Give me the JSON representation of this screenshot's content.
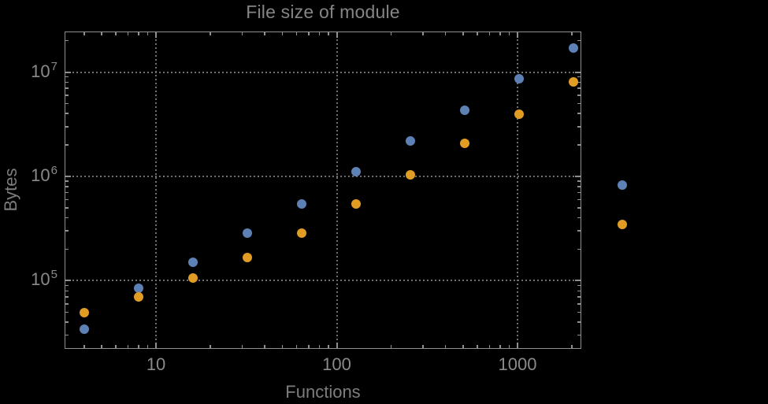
{
  "style": {
    "background": "#000000",
    "frame_color": "#8f8f8f",
    "grid_color": "#6f6f6f",
    "tick_label_color": "#8a8a8a",
    "title_color": "#858585",
    "axis_label_color": "#7d7d7d",
    "series_blue": "#5e81b5",
    "series_orange": "#e19c24"
  },
  "chart_data": {
    "type": "scatter",
    "title": "File size of module",
    "xlabel": "Functions",
    "ylabel": "Bytes",
    "xscale": "log",
    "yscale": "log",
    "xlim": [
      3.12,
      2254
    ],
    "ylim": [
      22200,
      24500000
    ],
    "grid": true,
    "legend": false,
    "x_ticks": [
      {
        "value": 10,
        "label": "10"
      },
      {
        "value": 100,
        "label": "100"
      },
      {
        "value": 1000,
        "label": "1000"
      }
    ],
    "y_ticks": [
      {
        "value": 100000,
        "base": "10",
        "exp": "5"
      },
      {
        "value": 1000000,
        "base": "10",
        "exp": "6"
      },
      {
        "value": 10000000,
        "base": "10",
        "exp": "7"
      }
    ],
    "series": [
      {
        "name": "series-1-blue",
        "color": "#5e81b5",
        "marker": "disk",
        "points": [
          [
            4,
            34000
          ],
          [
            8,
            85000
          ],
          [
            16,
            150000
          ],
          [
            32,
            286000
          ],
          [
            64,
            544000
          ],
          [
            128,
            1110000
          ],
          [
            256,
            2190000
          ],
          [
            512,
            4300000
          ],
          [
            1024,
            8630000
          ],
          [
            2048,
            17000000
          ],
          [
            3800,
            820000
          ]
        ]
      },
      {
        "name": "series-2-orange",
        "color": "#e19c24",
        "marker": "disk",
        "points": [
          [
            4,
            49000
          ],
          [
            8,
            70000
          ],
          [
            16,
            106000
          ],
          [
            32,
            167000
          ],
          [
            64,
            286000
          ],
          [
            128,
            544000
          ],
          [
            256,
            1040000
          ],
          [
            512,
            2070000
          ],
          [
            1024,
            3950000
          ],
          [
            2048,
            8050000
          ],
          [
            3800,
            345000
          ]
        ]
      }
    ]
  }
}
